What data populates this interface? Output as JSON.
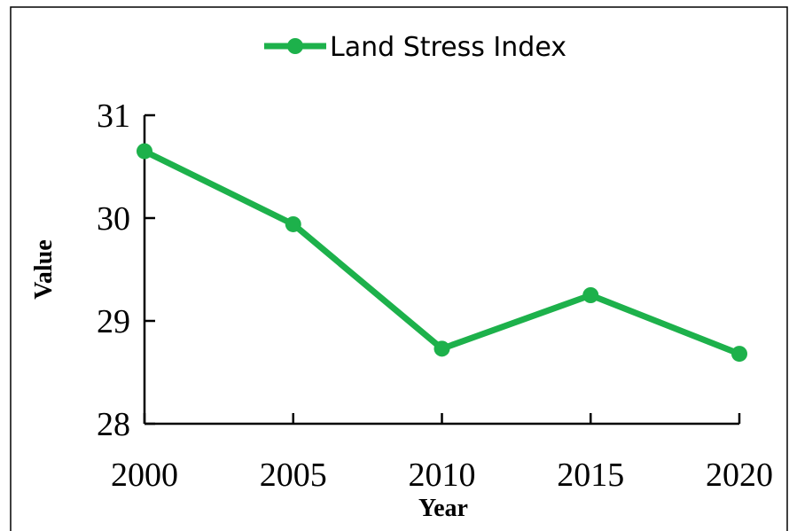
{
  "chart_data": {
    "type": "line",
    "x": [
      2000,
      2005,
      2010,
      2015,
      2020
    ],
    "series": [
      {
        "name": "Land Stress Index",
        "color": "#1db14b",
        "values": [
          30.65,
          29.94,
          28.73,
          29.25,
          28.68
        ]
      }
    ],
    "xlim": [
      2000,
      2020
    ],
    "xticks": [
      2000,
      2005,
      2010,
      2015,
      2020
    ],
    "ylim": [
      28,
      31
    ],
    "yticks": [
      28,
      29,
      30,
      31
    ],
    "xlabel": "Year",
    "ylabel": "Value",
    "legend": "top"
  }
}
